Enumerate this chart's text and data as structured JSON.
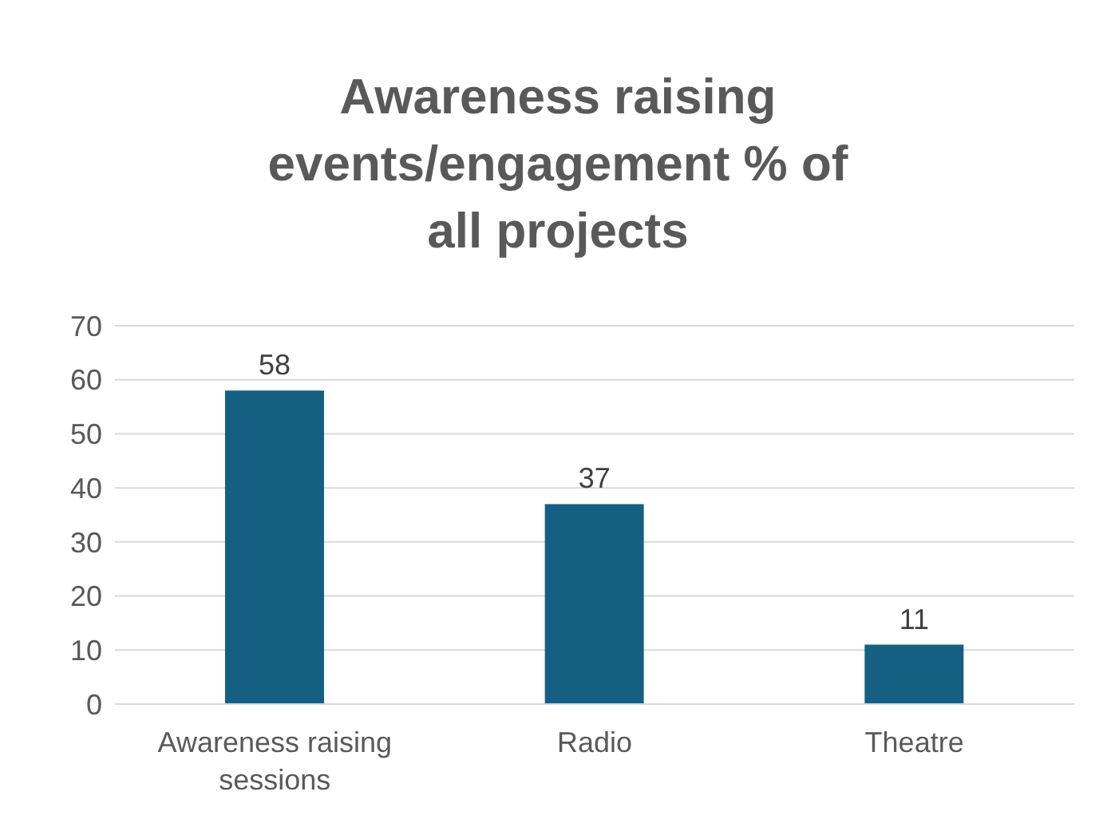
{
  "chart_data": {
    "type": "bar",
    "title": "Awareness raising events/engagement % of all projects",
    "categories": [
      "Awareness raising sessions",
      "Radio",
      "Theatre"
    ],
    "values": [
      58,
      37,
      11
    ],
    "color": "#156082",
    "ylim": [
      0,
      70
    ],
    "yticks": [
      0,
      10,
      20,
      30,
      40,
      50,
      60,
      70
    ],
    "grid": "y",
    "data_labels": true
  }
}
